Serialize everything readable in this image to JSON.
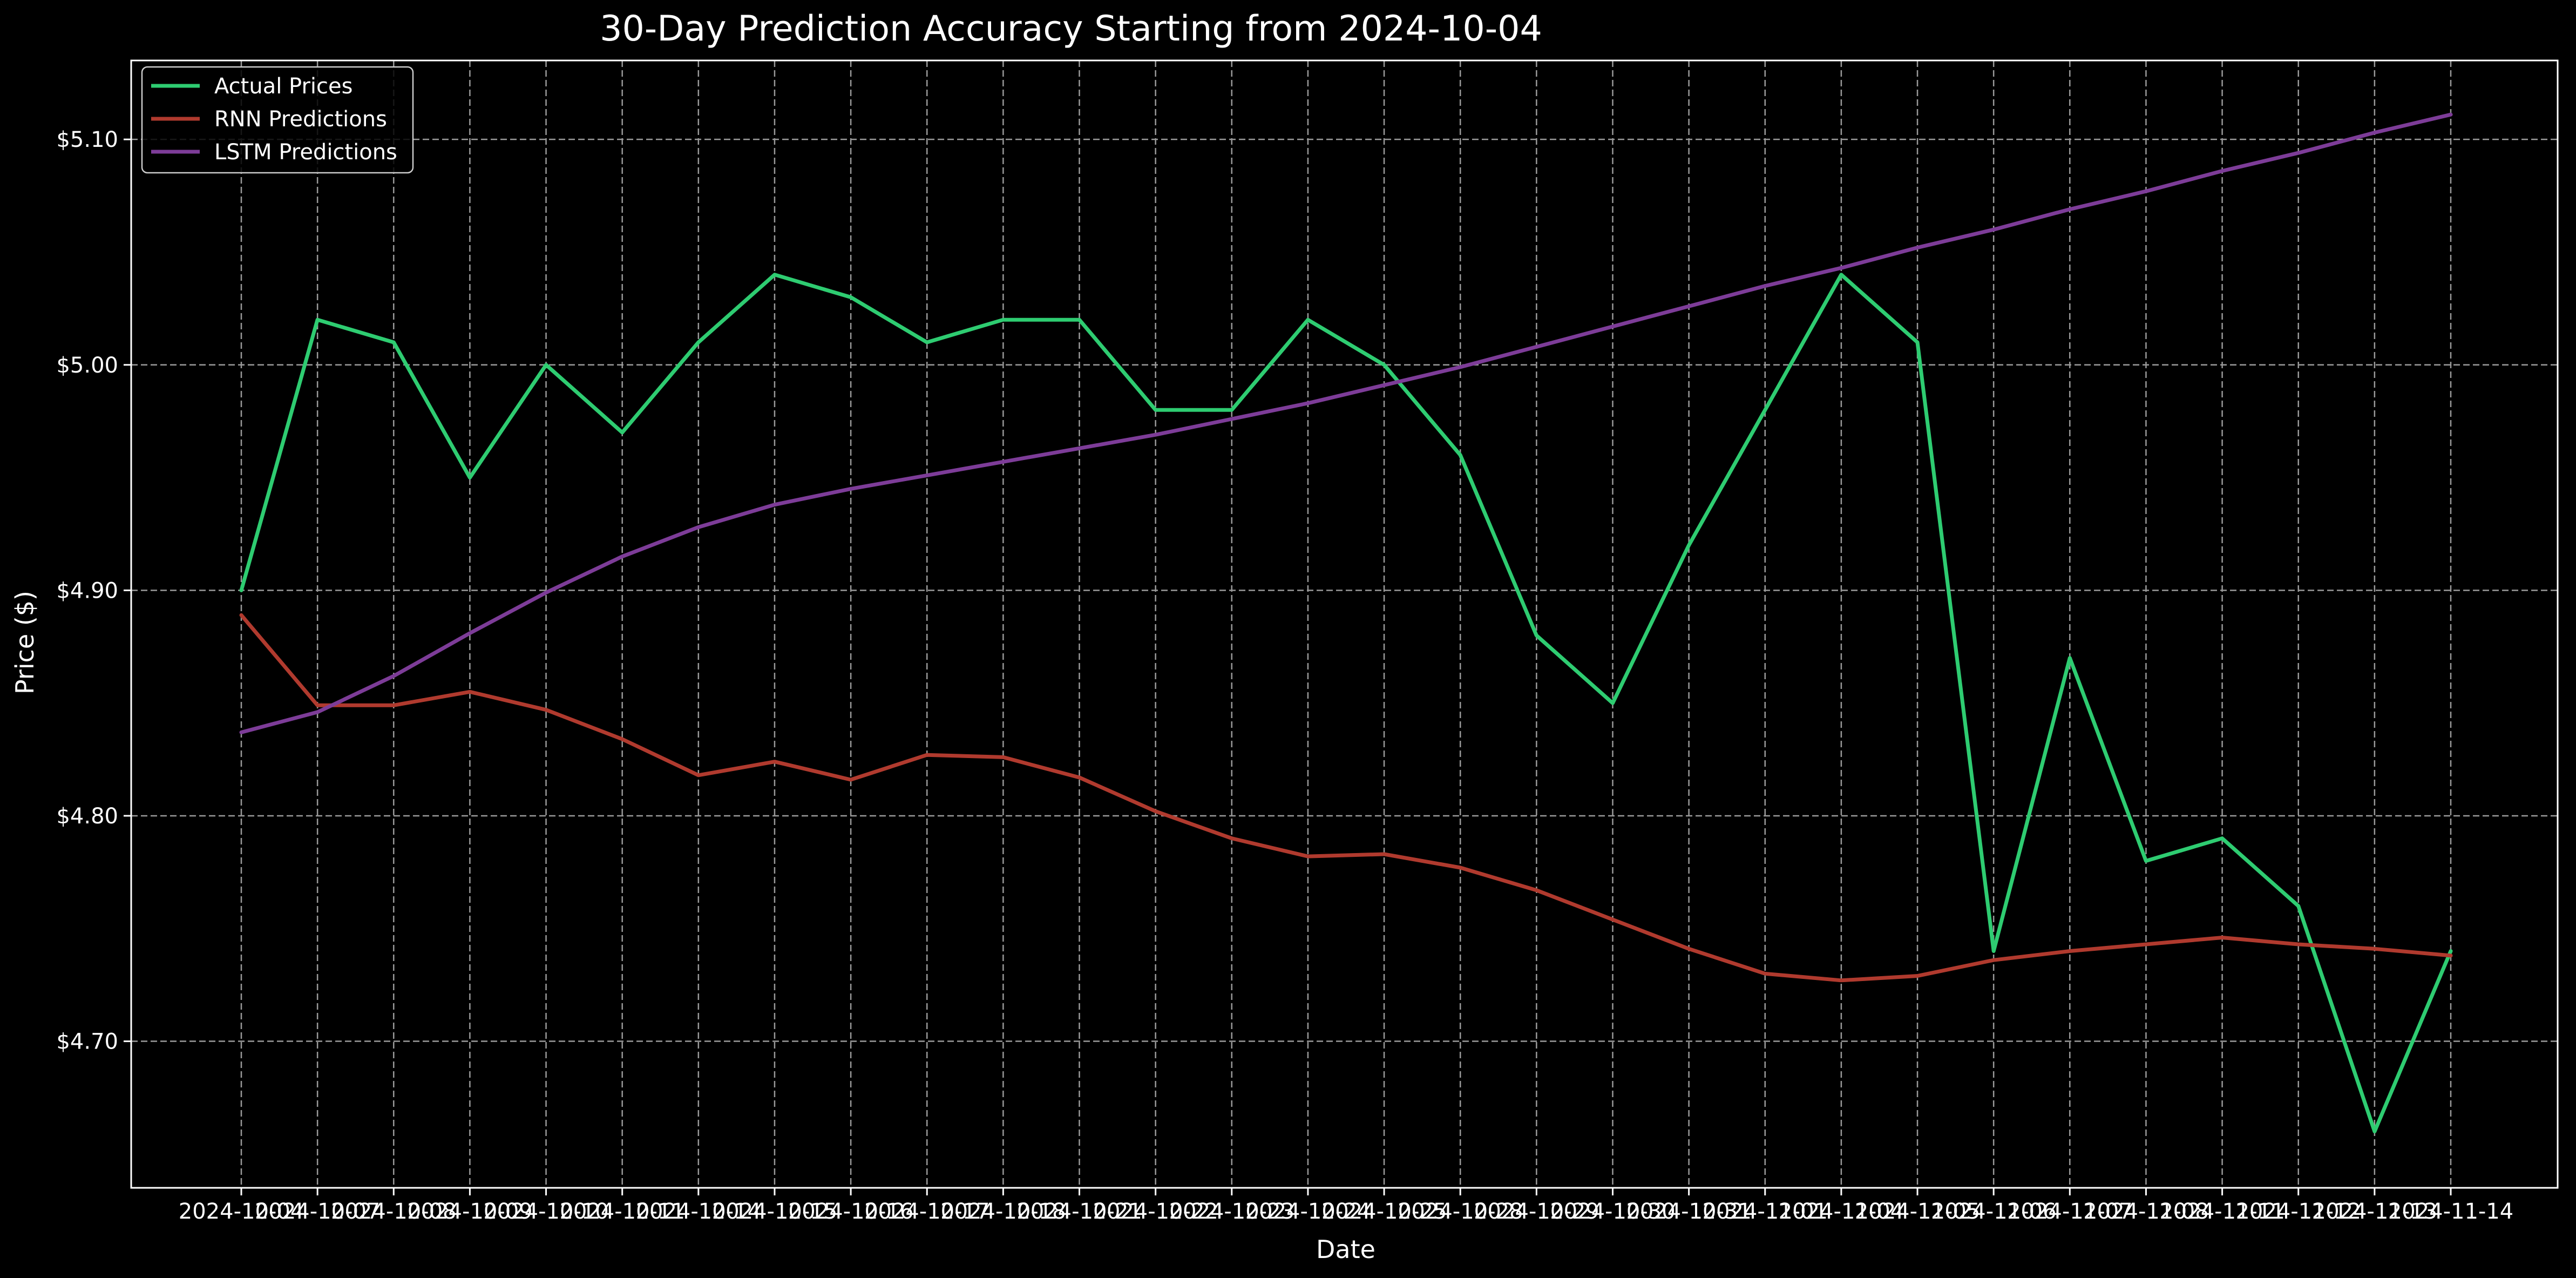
{
  "chart_data": {
    "type": "line",
    "title": "30-Day Prediction Accuracy Starting from 2024-10-04",
    "xlabel": "Date",
    "ylabel": "Price ($)",
    "ylim": [
      4.635,
      5.135
    ],
    "yticks": [
      4.7,
      4.8,
      4.9,
      5.0,
      5.1
    ],
    "ytick_labels": [
      "$4.70",
      "$4.80",
      "$4.90",
      "$5.00",
      "$5.10"
    ],
    "grid": true,
    "legend_position": "top-left",
    "categories": [
      "2024-10-04",
      "2024-10-07",
      "2024-10-08",
      "2024-10-09",
      "2024-10-10",
      "2024-10-11",
      "2024-10-14",
      "2024-10-15",
      "2024-10-16",
      "2024-10-17",
      "2024-10-18",
      "2024-10-21",
      "2024-10-22",
      "2024-10-23",
      "2024-10-24",
      "2024-10-25",
      "2024-10-28",
      "2024-10-29",
      "2024-10-30",
      "2024-10-31",
      "2024-11-01",
      "2024-11-04",
      "2024-11-05",
      "2024-11-06",
      "2024-11-07",
      "2024-11-08",
      "2024-11-11",
      "2024-11-12",
      "2024-11-13",
      "2024-11-14"
    ],
    "series": [
      {
        "name": "Actual Prices",
        "color": "#2ecc71",
        "values": [
          4.9,
          5.02,
          5.01,
          4.95,
          5.0,
          4.97,
          5.01,
          5.04,
          5.03,
          5.01,
          5.02,
          5.02,
          4.98,
          4.98,
          5.02,
          5.0,
          4.96,
          4.88,
          4.85,
          4.92,
          4.98,
          5.04,
          5.01,
          4.74,
          4.87,
          4.78,
          4.79,
          4.76,
          4.66,
          4.74
        ]
      },
      {
        "name": "RNN Predictions",
        "color": "#b03a2e",
        "values": [
          4.889,
          4.849,
          4.849,
          4.855,
          4.847,
          4.834,
          4.818,
          4.824,
          4.816,
          4.827,
          4.826,
          4.817,
          4.802,
          4.79,
          4.782,
          4.783,
          4.777,
          4.767,
          4.754,
          4.741,
          4.73,
          4.727,
          4.729,
          4.736,
          4.74,
          4.743,
          4.746,
          4.743,
          4.741,
          4.738
        ]
      },
      {
        "name": "LSTM Predictions",
        "color": "#7d3c98",
        "values": [
          4.837,
          4.846,
          4.862,
          4.881,
          4.899,
          4.915,
          4.928,
          4.938,
          4.945,
          4.951,
          4.957,
          4.963,
          4.969,
          4.976,
          4.983,
          4.991,
          4.999,
          5.008,
          5.017,
          5.026,
          5.035,
          5.043,
          5.052,
          5.06,
          5.069,
          5.077,
          5.086,
          5.094,
          5.103,
          5.111
        ]
      }
    ]
  }
}
